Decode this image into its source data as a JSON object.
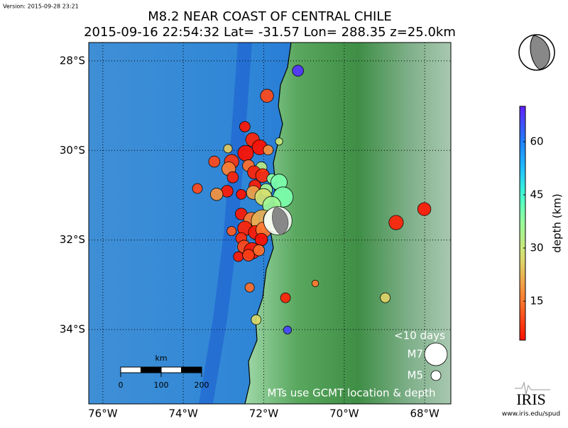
{
  "chart_data": {
    "type": "map",
    "version": "Version: 2015-09-28 23:21",
    "title": "M8.2 NEAR COAST OF CENTRAL CHILE",
    "subtitle": "2015-09-16 22:54:32 Lat= -31.57 Lon= 288.35 z=25.0km",
    "mainshock": {
      "lon": 288.35,
      "lat": -31.57
    },
    "xlim": [
      283.65,
      292.65
    ],
    "ylim": [
      -35.66,
      -27.59
    ],
    "xticks": [
      {
        "value": 284,
        "label": "76°W"
      },
      {
        "value": 286,
        "label": "74°W"
      },
      {
        "value": 288,
        "label": "72°W"
      },
      {
        "value": 290,
        "label": "70°W"
      },
      {
        "value": 292,
        "label": "68°W"
      }
    ],
    "yticks": [
      {
        "value": -28,
        "label": "28°S"
      },
      {
        "value": -30,
        "label": "30°S"
      },
      {
        "value": -32,
        "label": "32°S"
      },
      {
        "value": -34,
        "label": "34°S"
      }
    ],
    "grid": true,
    "events": {
      "lon": [
        288.85,
        288.08,
        287.53,
        287.72,
        287.9,
        287.11,
        288.11,
        288.38,
        287.55,
        286.77,
        287.2,
        287.62,
        287.13,
        287.94,
        287.76,
        287.97,
        288.2,
        287.23,
        288.38,
        287.78,
        288.06,
        286.35,
        287.09,
        286.83,
        287.44,
        287.74,
        287.99,
        288.48,
        288.2,
        287.44,
        287.69,
        287.97,
        287.53,
        287.79,
        287.2,
        288.0,
        287.44,
        287.94,
        287.51,
        287.71,
        287.88,
        287.37,
        287.62,
        287.65,
        289.28,
        288.54,
        287.81,
        288.59,
        291.02,
        291.29,
        291.99,
        288.29
      ],
      "lat": [
        -28.22,
        -28.78,
        -29.47,
        -29.76,
        -29.93,
        -29.96,
        -29.99,
        -29.8,
        -30.06,
        -30.25,
        -30.25,
        -30.34,
        -30.41,
        -30.38,
        -30.49,
        -30.56,
        -30.63,
        -30.6,
        -30.71,
        -30.79,
        -30.88,
        -30.85,
        -30.91,
        -30.98,
        -30.98,
        -30.94,
        -31.04,
        -31.04,
        -31.23,
        -31.42,
        -31.55,
        -31.58,
        -31.74,
        -31.83,
        -31.8,
        -31.77,
        -31.96,
        -31.99,
        -32.15,
        -32.24,
        -32.23,
        -32.37,
        -32.34,
        -33.06,
        -32.97,
        -33.29,
        -33.78,
        -34.01,
        -33.29,
        -31.61,
        -31.31,
        -31.55
      ],
      "depth": [
        68,
        10,
        5,
        6,
        4,
        25,
        18,
        30,
        3,
        10,
        8,
        14,
        16,
        32,
        6,
        7,
        38,
        6,
        40,
        5,
        35,
        10,
        5,
        18,
        4,
        20,
        28,
        40,
        36,
        5,
        15,
        22,
        6,
        5,
        12,
        15,
        7,
        4,
        10,
        5,
        14,
        5,
        9,
        14,
        15,
        6,
        27,
        66,
        26,
        6,
        5,
        33
      ],
      "mag": [
        5.2,
        5.5,
        5.1,
        5.6,
        5.8,
        4.8,
        5.0,
        4.6,
        5.9,
        5.2,
        5.7,
        5.3,
        5.6,
        5.2,
        5.5,
        5.6,
        5.0,
        5.2,
        6.0,
        5.3,
        5.4,
        5.0,
        5.3,
        5.4,
        5.0,
        5.6,
        6.1,
        6.6,
        6.3,
        5.3,
        5.8,
        7.0,
        5.7,
        5.6,
        4.9,
        5.9,
        5.2,
        5.4,
        5.5,
        6.0,
        5.2,
        5.0,
        5.3,
        4.9,
        4.5,
        5.0,
        5.0,
        4.7,
        5.0,
        5.7,
        5.5,
        7.2
      ]
    },
    "colorbar": {
      "label": "depth (km)",
      "clim": [
        4,
        70
      ],
      "ticks": [
        15,
        30,
        45,
        60
      ]
    },
    "legend": {
      "title": "<10 days",
      "entries": [
        {
          "label": "M7",
          "mag": 7
        },
        {
          "label": "M5",
          "mag": 5
        }
      ]
    },
    "note": "MTs use GCMT location & depth",
    "scale_bar": {
      "label": "km",
      "ticks": [
        0,
        100,
        200
      ]
    },
    "logo": {
      "name": "IRIS",
      "url": "www.iris.edu/spud"
    }
  }
}
